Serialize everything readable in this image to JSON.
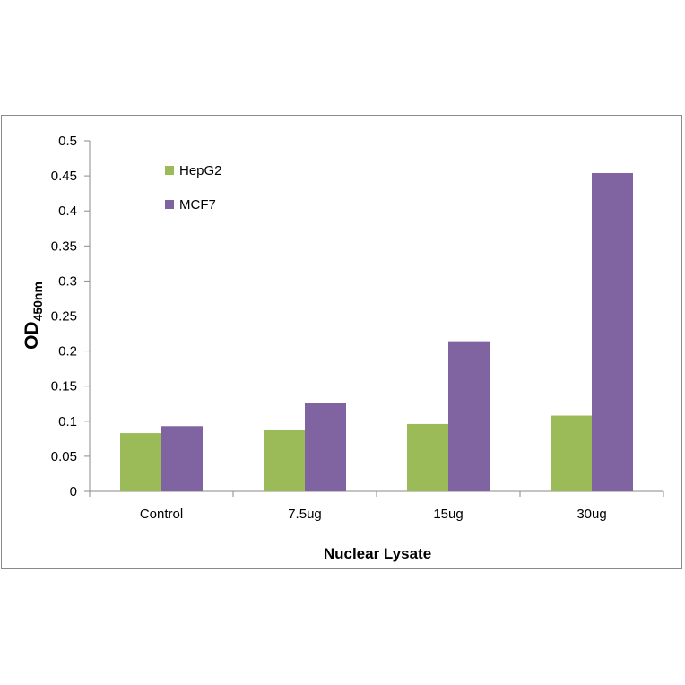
{
  "chart_data": {
    "type": "bar",
    "categories": [
      "Control",
      "7.5ug",
      "15ug",
      "30ug"
    ],
    "series": [
      {
        "name": "HepG2",
        "color": "#9bbb59",
        "values": [
          0.083,
          0.087,
          0.096,
          0.108
        ]
      },
      {
        "name": "MCF7",
        "color": "#8064a2",
        "values": [
          0.093,
          0.126,
          0.214,
          0.454
        ]
      }
    ],
    "title": "",
    "xlabel": "Nuclear Lysate",
    "ylabel_main": "OD",
    "ylabel_sub": "450nm",
    "ylim": [
      0,
      0.5
    ],
    "yticks": [
      "0",
      "0.05",
      "0.1",
      "0.15",
      "0.2",
      "0.25",
      "0.3",
      "0.35",
      "0.4",
      "0.45",
      "0.5"
    ],
    "grid": false,
    "legend": "top-left"
  }
}
